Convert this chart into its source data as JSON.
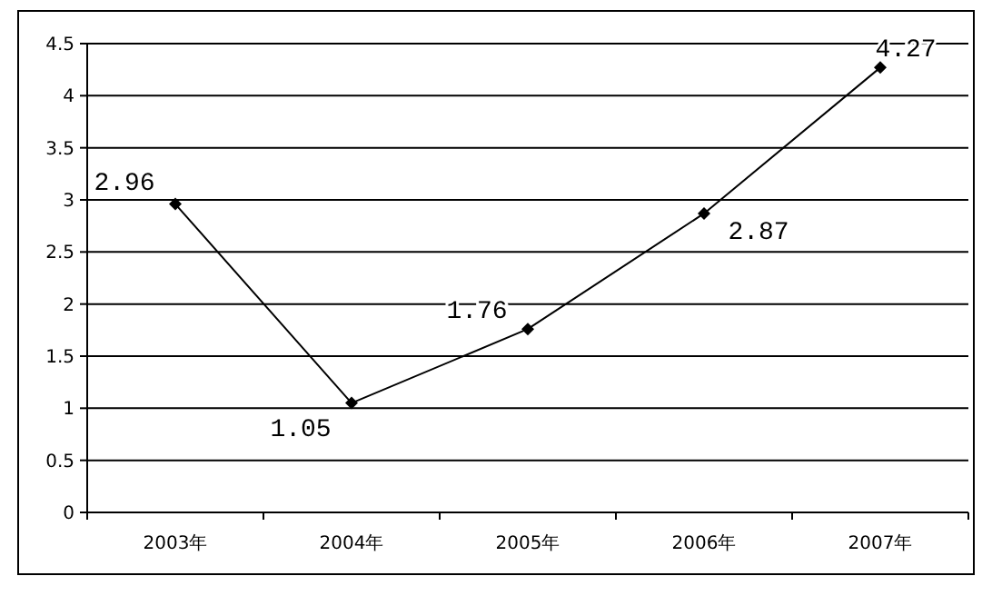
{
  "chart_data": {
    "type": "line",
    "categories": [
      "2003年",
      "2004年",
      "2005年",
      "2006年",
      "2007年"
    ],
    "series": [
      {
        "color": "#000000",
        "values": [
          2.96,
          1.05,
          1.76,
          2.87,
          4.27
        ]
      }
    ],
    "ylim": [
      0,
      4.5
    ],
    "yticks": [
      0,
      0.5,
      1,
      1.5,
      2,
      2.5,
      3,
      3.5,
      4,
      4.5
    ],
    "grid": "y",
    "marker": "diamond",
    "line_style": "solid",
    "data_labels": true
  }
}
